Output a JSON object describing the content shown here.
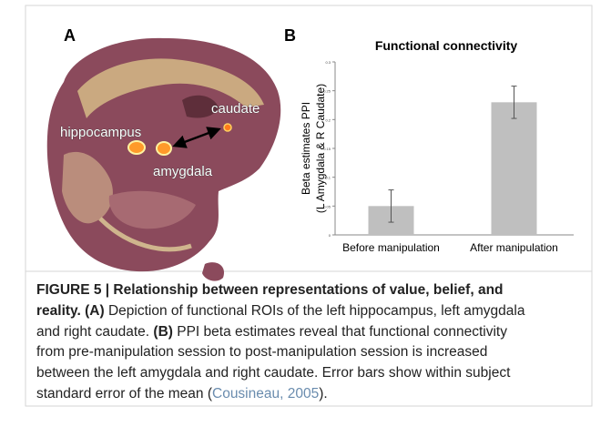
{
  "panel_a": {
    "letter": "A",
    "labels": [
      "hippocampus",
      "amygdala",
      "caudate"
    ]
  },
  "chart_data": {
    "type": "bar",
    "letter": "B",
    "title": "Functional connectivity",
    "y_label": [
      "Beta estimates PPI",
      "(L Amygdala & R Caudate)"
    ],
    "categories": [
      "Before manipulation",
      "After manipulation"
    ],
    "values": [
      0.05,
      0.23
    ],
    "errors": [
      0.028,
      0.028
    ],
    "color": "#bfbfbf",
    "ylim": [
      0,
      0.3
    ],
    "yticks": [
      0,
      0.05,
      0.1,
      0.15,
      0.2,
      0.25,
      0.3
    ]
  },
  "caption": {
    "lines": [
      [
        {
          "text": "FIGURE 5 | Relationship between representations of value, belief, and",
          "bold": true
        }
      ],
      [
        {
          "text": "reality.",
          "bold": true
        },
        {
          "text": " "
        },
        {
          "text": "(A)",
          "bold": true
        },
        {
          "text": " Depiction of functional ROIs of the left hippocampus, left amygdala"
        }
      ],
      [
        {
          "text": "and right caudate. "
        },
        {
          "text": "(B)",
          "bold": true
        },
        {
          "text": " PPI beta estimates reveal that functional connectivity"
        }
      ],
      [
        {
          "text": "from pre-manipulation session to post-manipulation session is increased"
        }
      ],
      [
        {
          "text": "between the left amygdala and right caudate. Error bars show within subject"
        }
      ],
      [
        {
          "text": "standard error of the mean ("
        },
        {
          "text": "Cousineau, 2005",
          "link": true
        },
        {
          "text": ")."
        }
      ]
    ]
  }
}
